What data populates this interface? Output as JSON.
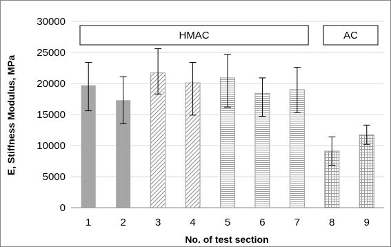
{
  "chart_data": {
    "type": "bar",
    "xlabel": "No. of test section",
    "ylabel": "E, Stiffness Modulus, MPa",
    "categories": [
      "1",
      "2",
      "3",
      "4",
      "5",
      "6",
      "7",
      "8",
      "9"
    ],
    "values": [
      19700,
      17300,
      21700,
      20100,
      20900,
      18400,
      19000,
      9100,
      11700
    ],
    "error_low": [
      15600,
      13500,
      18300,
      14900,
      16200,
      14700,
      15300,
      6800,
      10200
    ],
    "error_high": [
      23400,
      21100,
      25600,
      23400,
      24700,
      20900,
      22600,
      11400,
      13300
    ],
    "patterns": [
      "solid",
      "solid",
      "diagonal",
      "diagonal",
      "horizontal",
      "horizontal",
      "horizontal",
      "grid",
      "grid"
    ],
    "ylim": [
      0,
      30000
    ],
    "yticks": [
      0,
      5000,
      10000,
      15000,
      20000,
      25000,
      30000
    ],
    "grid": true,
    "groups": [
      {
        "label": "HMAC",
        "from": 1,
        "to": 7
      },
      {
        "label": "AC",
        "from": 8,
        "to": 9
      }
    ],
    "colors": {
      "solid": "#a6a6a6",
      "pattern": "#8c8c8c",
      "grid": "#d9d9d9",
      "axis": "#868686"
    }
  }
}
